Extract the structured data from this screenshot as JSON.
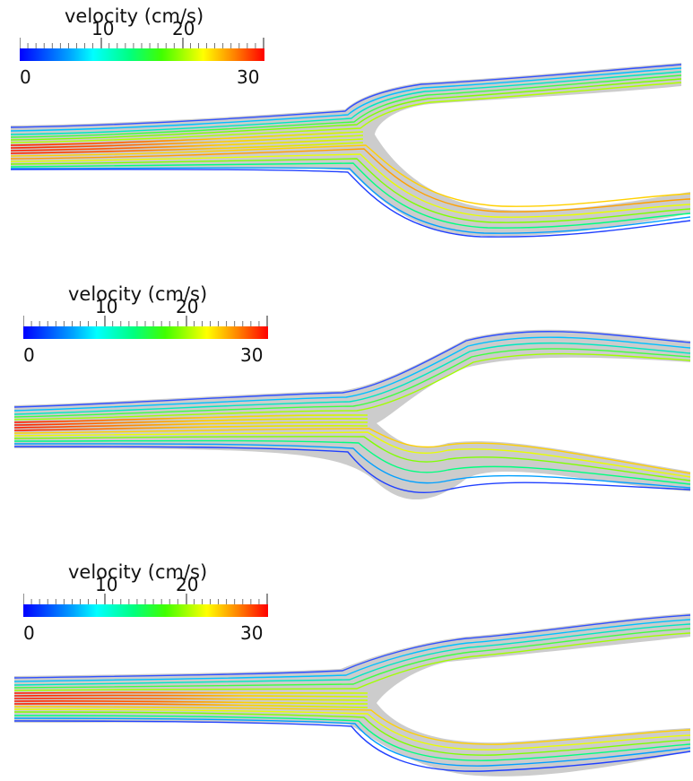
{
  "colormap": {
    "stops": [
      "#0000ff",
      "#00a0ff",
      "#00ffff",
      "#00ff80",
      "#40ff00",
      "#ffff00",
      "#ff8000",
      "#ff0000"
    ],
    "min": 0,
    "max": 30
  },
  "panels": [
    {
      "legend": {
        "title": "velocity (cm/s)",
        "min_label": "0",
        "max_label": "30",
        "tick_label_1": "10",
        "tick_label_2": "20"
      }
    },
    {
      "legend": {
        "title": "velocity (cm/s)",
        "min_label": "0",
        "max_label": "30",
        "tick_label_1": "10",
        "tick_label_2": "20"
      }
    },
    {
      "legend": {
        "title": "velocity (cm/s)",
        "min_label": "0",
        "max_label": "30",
        "tick_label_1": "10",
        "tick_label_2": "20"
      }
    }
  ]
}
